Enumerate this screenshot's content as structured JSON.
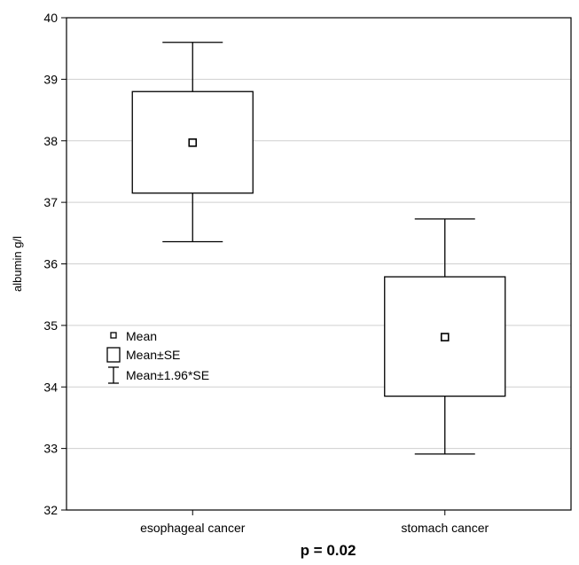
{
  "chart_data": {
    "type": "box",
    "categories": [
      "esophageal cancer",
      "stomach cancer"
    ],
    "series": [
      {
        "name": "Mean",
        "values": [
          37.97,
          34.81
        ]
      },
      {
        "name": "Mean±SE",
        "values": [
          [
            37.15,
            38.8
          ],
          [
            33.85,
            35.79
          ]
        ]
      },
      {
        "name": "Mean±1.96*SE",
        "values": [
          [
            36.36,
            39.6
          ],
          [
            32.91,
            36.73
          ]
        ]
      }
    ],
    "ylabel": "albumin g/l",
    "xlabel": "",
    "ylim": [
      32,
      40
    ],
    "yticks": [
      "32",
      "33",
      "34",
      "35",
      "36",
      "37",
      "38",
      "39",
      "40"
    ],
    "grid": true,
    "legend_position": "left-middle",
    "legend": [
      "Mean",
      "Mean±SE",
      "Mean±1.96*SE"
    ],
    "caption": "p = 0.02"
  }
}
